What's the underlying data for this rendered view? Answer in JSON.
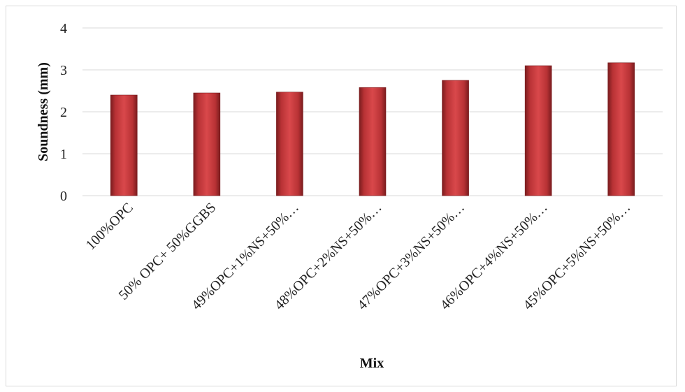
{
  "chart_data": {
    "type": "bar",
    "categories": [
      "100%OPC",
      "50% OPC+ 50%GGBS",
      "49%OPC+1%NS+50%…",
      "48%OPC+2%NS+50%…",
      "47%OPC+3%NS+50%…",
      "46%OPC+4%NS+50%…",
      "45%OPC+5%NS+50%…"
    ],
    "values": [
      2.4,
      2.45,
      2.47,
      2.58,
      2.75,
      3.1,
      3.17
    ],
    "xlabel": "Mix",
    "ylabel": "Soundness (mm)",
    "ylim": [
      0,
      4
    ],
    "yticks": [
      0,
      1,
      2,
      3,
      4
    ],
    "grid": true,
    "legend": "none",
    "bar_color": "#c0393b",
    "bar_color_dark": "#7a1c1e"
  }
}
